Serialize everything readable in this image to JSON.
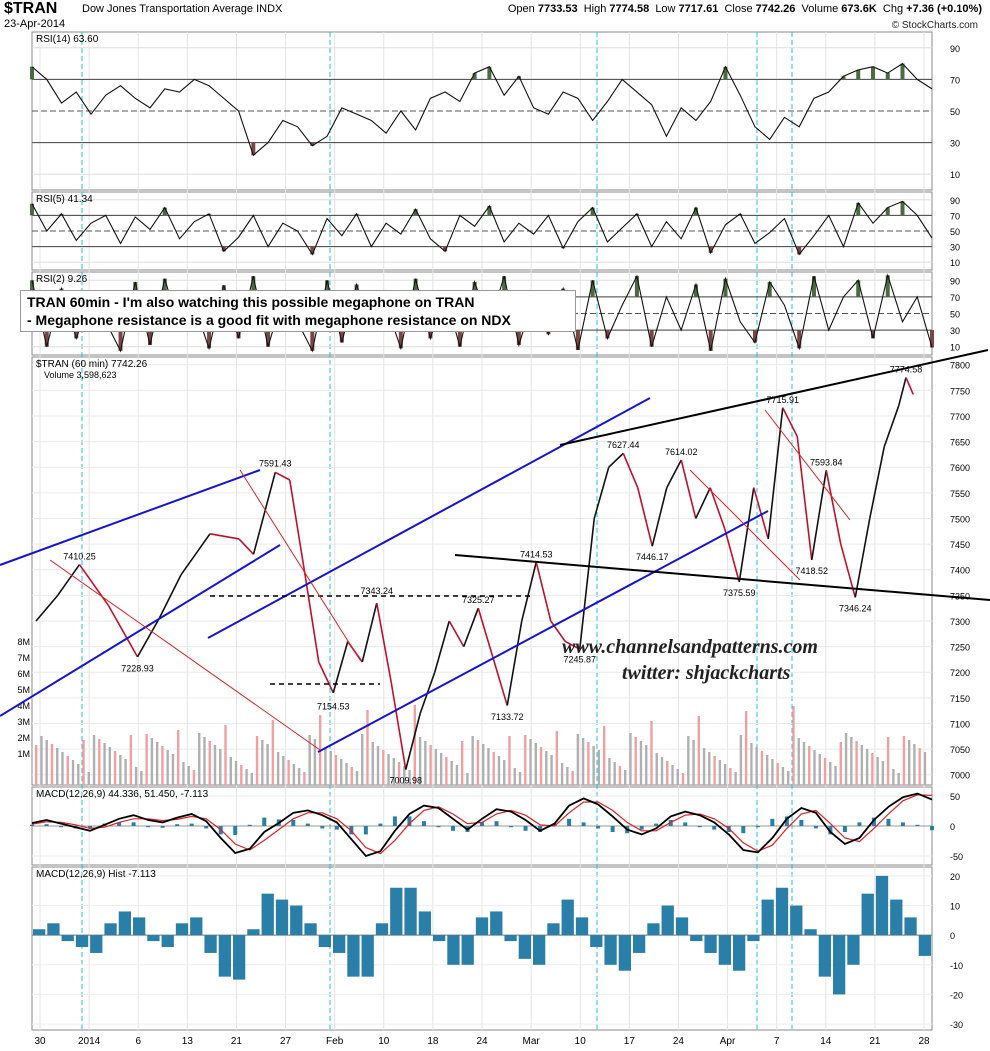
{
  "header": {
    "symbol": "$TRAN",
    "name": "Dow Jones Transportation Average INDX",
    "date": "23-Apr-2014",
    "open_label": "Open",
    "open": "7733.53",
    "high_label": "High",
    "high": "7774.58",
    "low_label": "Low",
    "low": "7717.61",
    "close_label": "Close",
    "close": "7742.26",
    "volume_label": "Volume",
    "volume": "673.6K",
    "chg_label": "Chg",
    "chg": "+7.36 (+0.10%)",
    "credit": "© StockCharts.com"
  },
  "annotation": {
    "line1": "TRAN 60min - I'm also watching this possible megaphone on TRAN",
    "line2": "- Megaphone resistance is a good fit with megaphone resistance on NDX"
  },
  "watermark": {
    "line1": "www.channelsandpatterns.com",
    "line2": "twitter: shjackcharts"
  },
  "colors": {
    "price_line": "#111111",
    "down_bar": "#c0102c",
    "trendline_blue": "#1515d0",
    "trendline_black": "#000000",
    "trendline_red": "#e02020",
    "cycle_marker": "#20c0e0",
    "macd_hist": "#2a7fa8",
    "rsi_fill_high": "#4a6a40",
    "rsi_fill_low": "#7a4545",
    "volume_up": "#b0b0b0",
    "volume_down": "#f0a0a0"
  },
  "chart_data": {
    "type": "line",
    "x_tick_labels": [
      "30",
      "2014",
      "6",
      "13",
      "21",
      "27",
      "Feb",
      "10",
      "18",
      "24",
      "Mar",
      "10",
      "17",
      "24",
      "Apr",
      "7",
      "14",
      "21",
      "28"
    ],
    "price_panel": {
      "legend": "$TRAN (60 min) 7742.26",
      "volume_legend": "Volume 3,598,623",
      "y_ticks": [
        7000,
        7050,
        7100,
        7150,
        7200,
        7250,
        7300,
        7350,
        7400,
        7450,
        7500,
        7550,
        7600,
        7650,
        7700,
        7750,
        7800
      ],
      "ylim": [
        6980,
        7815
      ],
      "volume_ticks": [
        "1M",
        "2M",
        "3M",
        "4M",
        "5M",
        "6M",
        "7M",
        "8M"
      ],
      "series": [
        {
          "name": "$TRAN (60 min)",
          "points": [
            [
              0,
              7300
            ],
            [
              1.5,
              7350
            ],
            [
              3,
              7410
            ],
            [
              5,
              7330
            ],
            [
              7,
              7230
            ],
            [
              8.5,
              7305
            ],
            [
              10,
              7390
            ],
            [
              12,
              7470
            ],
            [
              14,
              7460
            ],
            [
              15,
              7430
            ],
            [
              16.5,
              7590
            ],
            [
              17.5,
              7575
            ],
            [
              18.5,
              7400
            ],
            [
              19.5,
              7220
            ],
            [
              20.5,
              7160
            ],
            [
              21.5,
              7260
            ],
            [
              22.5,
              7220
            ],
            [
              23.5,
              7335
            ],
            [
              24.5,
              7180
            ],
            [
              25.5,
              7010
            ],
            [
              26.5,
              7120
            ],
            [
              27.5,
              7200
            ],
            [
              28.5,
              7300
            ],
            [
              29.5,
              7250
            ],
            [
              30.5,
              7325
            ],
            [
              31.5,
              7230
            ],
            [
              32.5,
              7135
            ],
            [
              33.5,
              7300
            ],
            [
              34.5,
              7415
            ],
            [
              35.5,
              7300
            ],
            [
              36.5,
              7260
            ],
            [
              37.5,
              7245
            ],
            [
              38.5,
              7500
            ],
            [
              39.5,
              7600
            ],
            [
              40.5,
              7627
            ],
            [
              41.5,
              7560
            ],
            [
              42.5,
              7446
            ],
            [
              43.5,
              7560
            ],
            [
              44.5,
              7614
            ],
            [
              45.5,
              7500
            ],
            [
              46.5,
              7560
            ],
            [
              47.5,
              7480
            ],
            [
              48.5,
              7376
            ],
            [
              49.5,
              7560
            ],
            [
              50.5,
              7460
            ],
            [
              51.5,
              7716
            ],
            [
              52.5,
              7660
            ],
            [
              53.5,
              7419
            ],
            [
              54.5,
              7594
            ],
            [
              55.5,
              7450
            ],
            [
              56.5,
              7346
            ],
            [
              57.5,
              7500
            ],
            [
              58.5,
              7640
            ],
            [
              59.5,
              7720
            ],
            [
              60,
              7775
            ],
            [
              60.5,
              7742
            ]
          ]
        }
      ],
      "value_labels": [
        {
          "x": 3,
          "y": 7410.25,
          "text": "7410.25"
        },
        {
          "x": 7,
          "y": 7228.93,
          "text": "7228.93"
        },
        {
          "x": 16.5,
          "y": 7591.43,
          "text": "7591.43"
        },
        {
          "x": 20.5,
          "y": 7154.53,
          "text": "7154.53"
        },
        {
          "x": 23.5,
          "y": 7343.24,
          "text": "7343.24"
        },
        {
          "x": 25.5,
          "y": 7009.98,
          "text": "7009.98"
        },
        {
          "x": 30.5,
          "y": 7325.27,
          "text": "7325.27"
        },
        {
          "x": 32.5,
          "y": 7133.72,
          "text": "7133.72"
        },
        {
          "x": 34.5,
          "y": 7414.53,
          "text": "7414.53"
        },
        {
          "x": 37.5,
          "y": 7245.87,
          "text": "7245.87"
        },
        {
          "x": 40.5,
          "y": 7627.44,
          "text": "7627.44"
        },
        {
          "x": 42.5,
          "y": 7446.17,
          "text": "7446.17"
        },
        {
          "x": 44.5,
          "y": 7614.02,
          "text": "7614.02"
        },
        {
          "x": 48.5,
          "y": 7375.59,
          "text": "7375.59"
        },
        {
          "x": 51.5,
          "y": 7715.91,
          "text": "7715.91"
        },
        {
          "x": 53.5,
          "y": 7418.52,
          "text": "7418.52"
        },
        {
          "x": 54.5,
          "y": 7593.84,
          "text": "7593.84"
        },
        {
          "x": 56.5,
          "y": 7346.24,
          "text": "7346.24"
        },
        {
          "x": 60,
          "y": 7774.58,
          "text": "7774.58"
        }
      ]
    },
    "rsi14": {
      "legend": "RSI(14) 63.60",
      "y_ticks": [
        10,
        30,
        50,
        70,
        90
      ],
      "ylim": [
        0,
        100
      ],
      "values": [
        78,
        70,
        55,
        62,
        48,
        60,
        66,
        58,
        52,
        64,
        62,
        70,
        66,
        58,
        50,
        22,
        30,
        44,
        40,
        28,
        34,
        52,
        48,
        44,
        36,
        50,
        38,
        58,
        62,
        56,
        74,
        78,
        60,
        72,
        52,
        48,
        62,
        58,
        44,
        56,
        70,
        62,
        54,
        34,
        52,
        44,
        56,
        78,
        60,
        40,
        32,
        46,
        40,
        58,
        62,
        72,
        76,
        78,
        74,
        80,
        70,
        64
      ]
    },
    "rsi5": {
      "legend": "RSI(5) 41.34",
      "y_ticks": [
        10,
        30,
        50,
        70,
        90
      ],
      "ylim": [
        0,
        100
      ],
      "values": [
        85,
        50,
        72,
        38,
        60,
        70,
        34,
        68,
        52,
        80,
        40,
        62,
        72,
        24,
        42,
        70,
        30,
        60,
        50,
        20,
        66,
        44,
        72,
        30,
        60,
        46,
        78,
        40,
        24,
        70,
        56,
        82,
        36,
        60,
        46,
        70,
        28,
        62,
        80,
        36,
        54,
        72,
        30,
        62,
        40,
        80,
        22,
        58,
        72,
        34,
        48,
        66,
        20,
        44,
        70,
        30,
        86,
        60,
        80,
        88,
        70,
        41
      ]
    },
    "rsi2": {
      "legend": "RSI(2) 9.26",
      "y_ticks": [
        10,
        30,
        50,
        70,
        90
      ],
      "ylim": [
        0,
        100
      ],
      "values": [
        90,
        10,
        80,
        20,
        70,
        40,
        5,
        88,
        12,
        92,
        30,
        60,
        8,
        84,
        20,
        95,
        10,
        70,
        40,
        5,
        90,
        15,
        85,
        30,
        60,
        8,
        92,
        20,
        75,
        10,
        88,
        35,
        95,
        12,
        70,
        25,
        80,
        6,
        90,
        20,
        60,
        95,
        10,
        70,
        30,
        85,
        5,
        92,
        40,
        15,
        88,
        60,
        8,
        95,
        30,
        70,
        90,
        20,
        96,
        40,
        70,
        9
      ]
    },
    "macd": {
      "legend": "MACD(12,26,9) 44.336, 51.450, -7.113",
      "y_ticks": [
        -50,
        0,
        50
      ],
      "ylim": [
        -65,
        65
      ],
      "macd": [
        5,
        10,
        4,
        -2,
        -8,
        2,
        12,
        18,
        10,
        6,
        14,
        20,
        8,
        -20,
        -45,
        -38,
        -10,
        5,
        22,
        26,
        18,
        6,
        -22,
        -50,
        -42,
        -8,
        20,
        34,
        30,
        12,
        -6,
        12,
        28,
        24,
        10,
        -8,
        4,
        34,
        46,
        36,
        16,
        -6,
        -14,
        -4,
        16,
        24,
        18,
        6,
        -14,
        -40,
        -44,
        -20,
        12,
        30,
        22,
        -10,
        -30,
        -20,
        10,
        32,
        48,
        54,
        44
      ],
      "signal": [
        3,
        7,
        6,
        2,
        -4,
        -2,
        6,
        12,
        12,
        9,
        11,
        16,
        12,
        -6,
        -30,
        -40,
        -24,
        -6,
        12,
        22,
        22,
        12,
        -8,
        -36,
        -46,
        -24,
        4,
        26,
        32,
        20,
        4,
        6,
        20,
        26,
        18,
        2,
        0,
        22,
        40,
        40,
        26,
        6,
        -8,
        -8,
        6,
        18,
        20,
        12,
        -4,
        -28,
        -42,
        -32,
        -4,
        20,
        26,
        4,
        -20,
        -26,
        -4,
        20,
        42,
        52,
        51
      ]
    },
    "macd_hist": {
      "legend": "MACD(12,26,9) Hist -7.113",
      "y_ticks": [
        -30,
        -20,
        -10,
        0,
        10,
        20
      ],
      "ylim": [
        -32,
        23
      ],
      "values": [
        2,
        4,
        -2,
        -4,
        -6,
        4,
        8,
        6,
        -2,
        -4,
        4,
        6,
        -6,
        -14,
        -15,
        2,
        14,
        12,
        10,
        4,
        -4,
        -6,
        -14,
        -14,
        4,
        16,
        16,
        8,
        -2,
        -10,
        -10,
        6,
        8,
        -2,
        -8,
        -10,
        4,
        12,
        6,
        -4,
        -10,
        -12,
        -6,
        4,
        10,
        6,
        -2,
        -6,
        -10,
        -12,
        -2,
        12,
        16,
        10,
        2,
        -14,
        -20,
        -10,
        14,
        20,
        12,
        6,
        -7
      ]
    }
  }
}
